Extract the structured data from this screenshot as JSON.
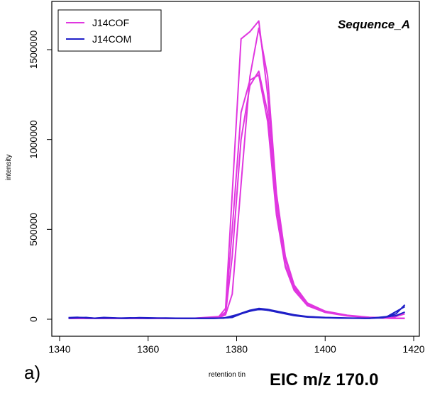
{
  "chart_data": {
    "type": "line",
    "title": "Sequence_A",
    "xlabel": "retention tin",
    "ylabel": "intensity",
    "xlim": [
      1340,
      1420
    ],
    "ylim": [
      -30000,
      1750000
    ],
    "x_ticks": [
      1340,
      1360,
      1380,
      1400,
      1420
    ],
    "y_ticks": [
      0,
      500000,
      1000000,
      1500000
    ],
    "grid": false,
    "legend_position": "top-left",
    "series": [
      {
        "name": "J14COF",
        "color": "#e036e0",
        "replicates": [
          [
            [
              1342,
              5000
            ],
            [
              1350,
              5000
            ],
            [
              1360,
              5000
            ],
            [
              1370,
              5000
            ],
            [
              1376,
              10000
            ],
            [
              1377.5,
              30000
            ],
            [
              1379,
              350000
            ],
            [
              1381,
              1000000
            ],
            [
              1383,
              1300000
            ],
            [
              1385,
              1380000
            ],
            [
              1387,
              1150000
            ],
            [
              1389,
              600000
            ],
            [
              1391,
              300000
            ],
            [
              1393,
              170000
            ],
            [
              1396,
              80000
            ],
            [
              1400,
              40000
            ],
            [
              1405,
              20000
            ],
            [
              1410,
              10000
            ],
            [
              1415,
              5000
            ],
            [
              1418,
              5000
            ]
          ],
          [
            [
              1342,
              5000
            ],
            [
              1350,
              5000
            ],
            [
              1360,
              5000
            ],
            [
              1370,
              5000
            ],
            [
              1376,
              12000
            ],
            [
              1377.5,
              40000
            ],
            [
              1379,
              500000
            ],
            [
              1381,
              1150000
            ],
            [
              1383,
              1330000
            ],
            [
              1385,
              1360000
            ],
            [
              1387,
              1100000
            ],
            [
              1389,
              580000
            ],
            [
              1391,
              290000
            ],
            [
              1393,
              160000
            ],
            [
              1396,
              75000
            ],
            [
              1400,
              38000
            ],
            [
              1405,
              18000
            ],
            [
              1410,
              9000
            ],
            [
              1415,
              5000
            ],
            [
              1418,
              5000
            ]
          ],
          [
            [
              1342,
              5000
            ],
            [
              1350,
              5000
            ],
            [
              1360,
              5000
            ],
            [
              1370,
              5000
            ],
            [
              1376,
              15000
            ],
            [
              1377.5,
              60000
            ],
            [
              1379,
              700000
            ],
            [
              1381,
              1560000
            ],
            [
              1383,
              1600000
            ],
            [
              1385,
              1660000
            ],
            [
              1387,
              1250000
            ],
            [
              1389,
              650000
            ],
            [
              1391,
              330000
            ],
            [
              1393,
              180000
            ],
            [
              1396,
              85000
            ],
            [
              1400,
              42000
            ],
            [
              1405,
              20000
            ],
            [
              1410,
              10000
            ],
            [
              1415,
              6000
            ],
            [
              1418,
              5000
            ]
          ],
          [
            [
              1342,
              5000
            ],
            [
              1350,
              5000
            ],
            [
              1360,
              5000
            ],
            [
              1370,
              5000
            ],
            [
              1376,
              8000
            ],
            [
              1377.5,
              25000
            ],
            [
              1379,
              140000
            ],
            [
              1381,
              750000
            ],
            [
              1383,
              1350000
            ],
            [
              1385,
              1620000
            ],
            [
              1387,
              1350000
            ],
            [
              1389,
              700000
            ],
            [
              1391,
              350000
            ],
            [
              1393,
              190000
            ],
            [
              1396,
              90000
            ],
            [
              1400,
              45000
            ],
            [
              1405,
              22000
            ],
            [
              1410,
              11000
            ],
            [
              1415,
              8000
            ],
            [
              1418,
              30000
            ]
          ]
        ]
      },
      {
        "name": "J14COM",
        "color": "#1f1fc8",
        "replicates": [
          [
            [
              1342,
              9000
            ],
            [
              1344,
              11000
            ],
            [
              1346,
              7000
            ],
            [
              1348,
              6000
            ],
            [
              1350,
              10000
            ],
            [
              1352,
              8000
            ],
            [
              1355,
              5000
            ],
            [
              1358,
              9000
            ],
            [
              1362,
              7000
            ],
            [
              1366,
              5000
            ],
            [
              1370,
              5000
            ],
            [
              1374,
              5000
            ],
            [
              1377,
              6000
            ],
            [
              1380,
              25000
            ],
            [
              1383,
              50000
            ],
            [
              1385,
              60000
            ],
            [
              1387,
              55000
            ],
            [
              1390,
              40000
            ],
            [
              1393,
              25000
            ],
            [
              1396,
              15000
            ],
            [
              1400,
              10000
            ],
            [
              1405,
              7000
            ],
            [
              1410,
              5000
            ],
            [
              1413,
              8000
            ],
            [
              1416,
              30000
            ],
            [
              1418,
              80000
            ]
          ],
          [
            [
              1342,
              6000
            ],
            [
              1344,
              8000
            ],
            [
              1346,
              10000
            ],
            [
              1348,
              5000
            ],
            [
              1350,
              7000
            ],
            [
              1353,
              6000
            ],
            [
              1356,
              8000
            ],
            [
              1360,
              5000
            ],
            [
              1364,
              7000
            ],
            [
              1368,
              5000
            ],
            [
              1372,
              5000
            ],
            [
              1376,
              6000
            ],
            [
              1379,
              10000
            ],
            [
              1382,
              40000
            ],
            [
              1385,
              55000
            ],
            [
              1387,
              50000
            ],
            [
              1390,
              35000
            ],
            [
              1393,
              20000
            ],
            [
              1396,
              12000
            ],
            [
              1400,
              8000
            ],
            [
              1405,
              6000
            ],
            [
              1410,
              5000
            ],
            [
              1414,
              15000
            ],
            [
              1418,
              70000
            ]
          ],
          [
            [
              1342,
              7000
            ],
            [
              1345,
              9000
            ],
            [
              1348,
              6000
            ],
            [
              1351,
              8000
            ],
            [
              1354,
              5000
            ],
            [
              1358,
              7000
            ],
            [
              1362,
              6000
            ],
            [
              1366,
              5000
            ],
            [
              1370,
              5000
            ],
            [
              1375,
              5000
            ],
            [
              1378,
              8000
            ],
            [
              1381,
              30000
            ],
            [
              1384,
              52000
            ],
            [
              1386,
              54000
            ],
            [
              1389,
              42000
            ],
            [
              1392,
              26000
            ],
            [
              1395,
              16000
            ],
            [
              1399,
              10000
            ],
            [
              1404,
              6000
            ],
            [
              1409,
              5000
            ],
            [
              1413,
              10000
            ],
            [
              1416,
              20000
            ],
            [
              1418,
              40000
            ]
          ]
        ]
      }
    ]
  },
  "panel_label": "a)",
  "footer_caption": "EIC m/z 170.0"
}
